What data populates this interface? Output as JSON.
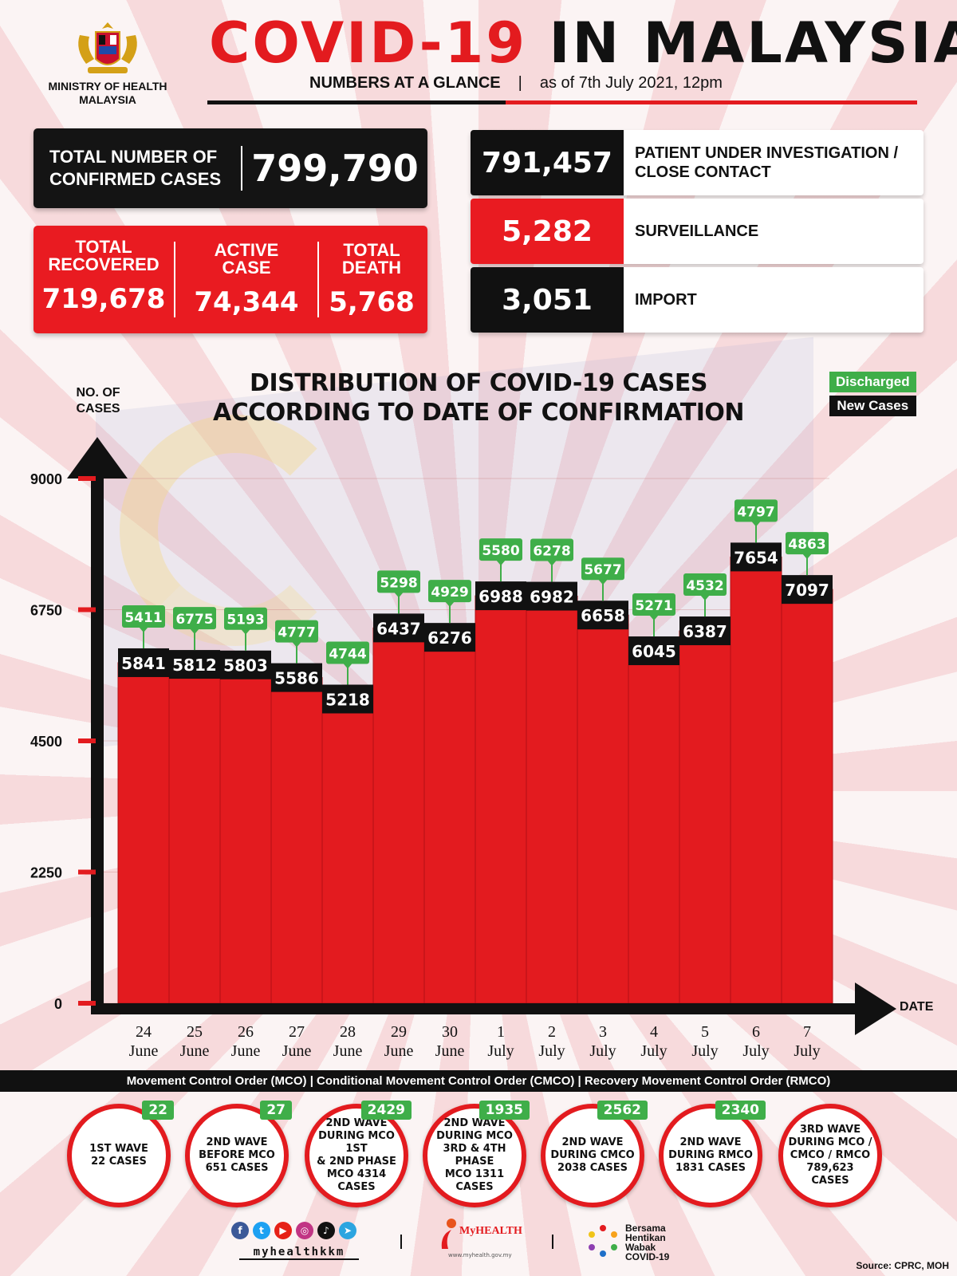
{
  "header": {
    "ministry": "MINISTRY OF HEALTH MALAYSIA",
    "title_red": "COVID-19",
    "title_black": "IN MALAYSIA",
    "subtitle_bold": "NUMBERS AT A GLANCE",
    "subtitle_sep": "|",
    "subtitle_date": "as of 7th July 2021, 12pm"
  },
  "stats": {
    "confirmed_label": "TOTAL NUMBER OF CONFIRMED CASES",
    "confirmed_value": "799,790",
    "recovered_label": "TOTAL RECOVERED",
    "recovered_value": "719,678",
    "active_label": "ACTIVE CASE",
    "active_value": "74,344",
    "death_label": "TOTAL DEATH",
    "death_value": "5,768"
  },
  "categories": [
    {
      "value": "791,457",
      "label": "PATIENT UNDER INVESTIGATION / CLOSE CONTACT",
      "color": "black"
    },
    {
      "value": "5,282",
      "label": "SURVEILLANCE",
      "color": "red"
    },
    {
      "value": "3,051",
      "label": "IMPORT",
      "color": "black"
    }
  ],
  "chart_data": {
    "type": "bar",
    "title": "DISTRIBUTION OF COVID-19 CASES ACCORDING TO DATE OF CONFIRMATION",
    "ylabel": "NO. OF CASES",
    "xlabel": "DATE",
    "ylim": [
      0,
      9000
    ],
    "yticks": [
      0,
      2250,
      4500,
      6750,
      9000
    ],
    "categories": [
      "24 June",
      "25 June",
      "26 June",
      "27 June",
      "28 June",
      "29 June",
      "30 June",
      "1 July",
      "2 July",
      "3 July",
      "4 July",
      "5 July",
      "6 July",
      "7 July"
    ],
    "category_day": [
      "24",
      "25",
      "26",
      "27",
      "28",
      "29",
      "30",
      "1",
      "2",
      "3",
      "4",
      "5",
      "6",
      "7"
    ],
    "category_month": [
      "June",
      "June",
      "June",
      "June",
      "June",
      "June",
      "June",
      "July",
      "July",
      "July",
      "July",
      "July",
      "July",
      "July"
    ],
    "series": [
      {
        "name": "New Cases",
        "values": [
          5841,
          5812,
          5803,
          5586,
          5218,
          6437,
          6276,
          6988,
          6982,
          6658,
          6045,
          6387,
          7654,
          7097
        ]
      },
      {
        "name": "Discharged",
        "values": [
          5411,
          6775,
          5193,
          4777,
          4744,
          5298,
          4929,
          5580,
          6278,
          5677,
          5271,
          4532,
          4797,
          4863
        ]
      }
    ],
    "legend": [
      "Discharged",
      "New Cases"
    ],
    "legend_position": "top-right",
    "colors": {
      "bar": "#e31b1f",
      "new_label": "#111111",
      "discharged_label": "#3fae49"
    }
  },
  "mco_band": "Movement Control Order (MCO) | Conditional Movement Control Order (CMCO) | Recovery Movement Control Order (RMCO)",
  "waves": [
    {
      "text": "1ST WAVE\n22 CASES",
      "badge": "22"
    },
    {
      "text": "2ND WAVE\nBEFORE MCO\n651 CASES",
      "badge": "27"
    },
    {
      "text": "2ND WAVE\nDURING MCO 1ST\n& 2ND PHASE\nMCO 4314\nCASES",
      "badge": "2429"
    },
    {
      "text": "2ND WAVE\nDURING MCO\n3RD & 4TH PHASE\nMCO 1311\nCASES",
      "badge": "1935"
    },
    {
      "text": "2ND WAVE\nDURING CMCO\n2038 CASES",
      "badge": "2562"
    },
    {
      "text": "2ND WAVE\nDURING RMCO\n1831 CASES",
      "badge": "2340"
    },
    {
      "text": "3RD WAVE\nDURING MCO /\nCMCO / RMCO\n789,623\nCASES",
      "badge": ""
    }
  ],
  "footer": {
    "handle": "myhealthkkm",
    "myhealth": "MyHEALTH",
    "myhealth_url": "www.myhealth.gov.my",
    "bersama": "Bersama\nHentikan\nWabak\nCOVID-19",
    "source": "Source: CPRC, MOH",
    "social_icons": [
      "facebook-icon",
      "twitter-icon",
      "youtube-icon",
      "instagram-icon",
      "tiktok-icon",
      "telegram-icon"
    ]
  }
}
